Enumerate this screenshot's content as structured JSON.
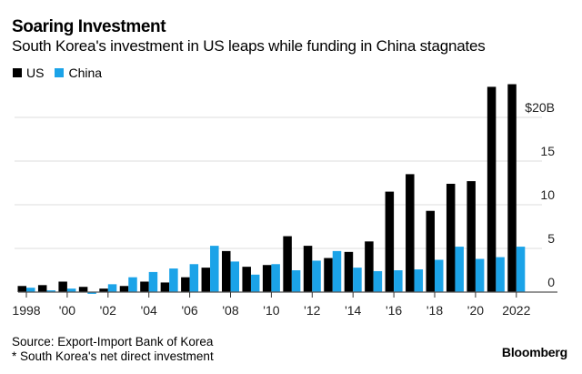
{
  "chart_data": {
    "type": "bar",
    "title": "Soaring Investment",
    "subtitle": "South Korea's investment in US leaps while funding in China stagnates",
    "xlabel": "",
    "ylabel": "",
    "y_unit_prefix": "$",
    "y_unit_suffix": "B",
    "ylim": [
      0,
      25
    ],
    "yticks": [
      0,
      5,
      10,
      15,
      20
    ],
    "ytick_labels": [
      "0",
      "5",
      "10",
      "15",
      "$20B"
    ],
    "grid": true,
    "legend_position": "top-left",
    "categories": [
      "1998",
      "1999",
      "2000",
      "2001",
      "2002",
      "2003",
      "2004",
      "2005",
      "2006",
      "2007",
      "2008",
      "2009",
      "2010",
      "2011",
      "2012",
      "2013",
      "2014",
      "2015",
      "2016",
      "2017",
      "2018",
      "2019",
      "2020",
      "2021",
      "2022"
    ],
    "xtick_years": [
      "1998",
      "2000",
      "2002",
      "2004",
      "2006",
      "2008",
      "2010",
      "2012",
      "2014",
      "2016",
      "2018",
      "2020",
      "2022"
    ],
    "xtick_labels": [
      "1998",
      "'00",
      "'02",
      "'04",
      "'06",
      "'08",
      "'10",
      "'12",
      "'14",
      "'16",
      "'18",
      "'20",
      "2022"
    ],
    "series": [
      {
        "name": "US",
        "color": "#000000",
        "values": [
          0.7,
          0.8,
          1.2,
          0.6,
          0.4,
          0.7,
          1.2,
          1.1,
          1.7,
          2.8,
          4.7,
          2.9,
          3.1,
          6.4,
          5.3,
          3.9,
          4.6,
          5.8,
          11.5,
          13.5,
          9.3,
          12.4,
          12.7,
          23.5,
          23.8
        ]
      },
      {
        "name": "China",
        "color": "#1ba3e8",
        "values": [
          0.5,
          0.2,
          0.4,
          -0.2,
          0.9,
          1.7,
          2.3,
          2.7,
          3.2,
          5.3,
          3.5,
          2.0,
          3.2,
          2.5,
          3.6,
          4.7,
          2.8,
          2.4,
          2.5,
          2.6,
          3.7,
          5.2,
          3.8,
          4.0,
          5.2
        ]
      }
    ]
  },
  "legend": {
    "items": [
      {
        "label": "US",
        "color": "#000000"
      },
      {
        "label": "China",
        "color": "#1ba3e8"
      }
    ]
  },
  "footer": {
    "source": "Source: Export-Import Bank of Korea",
    "note": "* South Korea's net direct investment",
    "brand": "Bloomberg"
  }
}
